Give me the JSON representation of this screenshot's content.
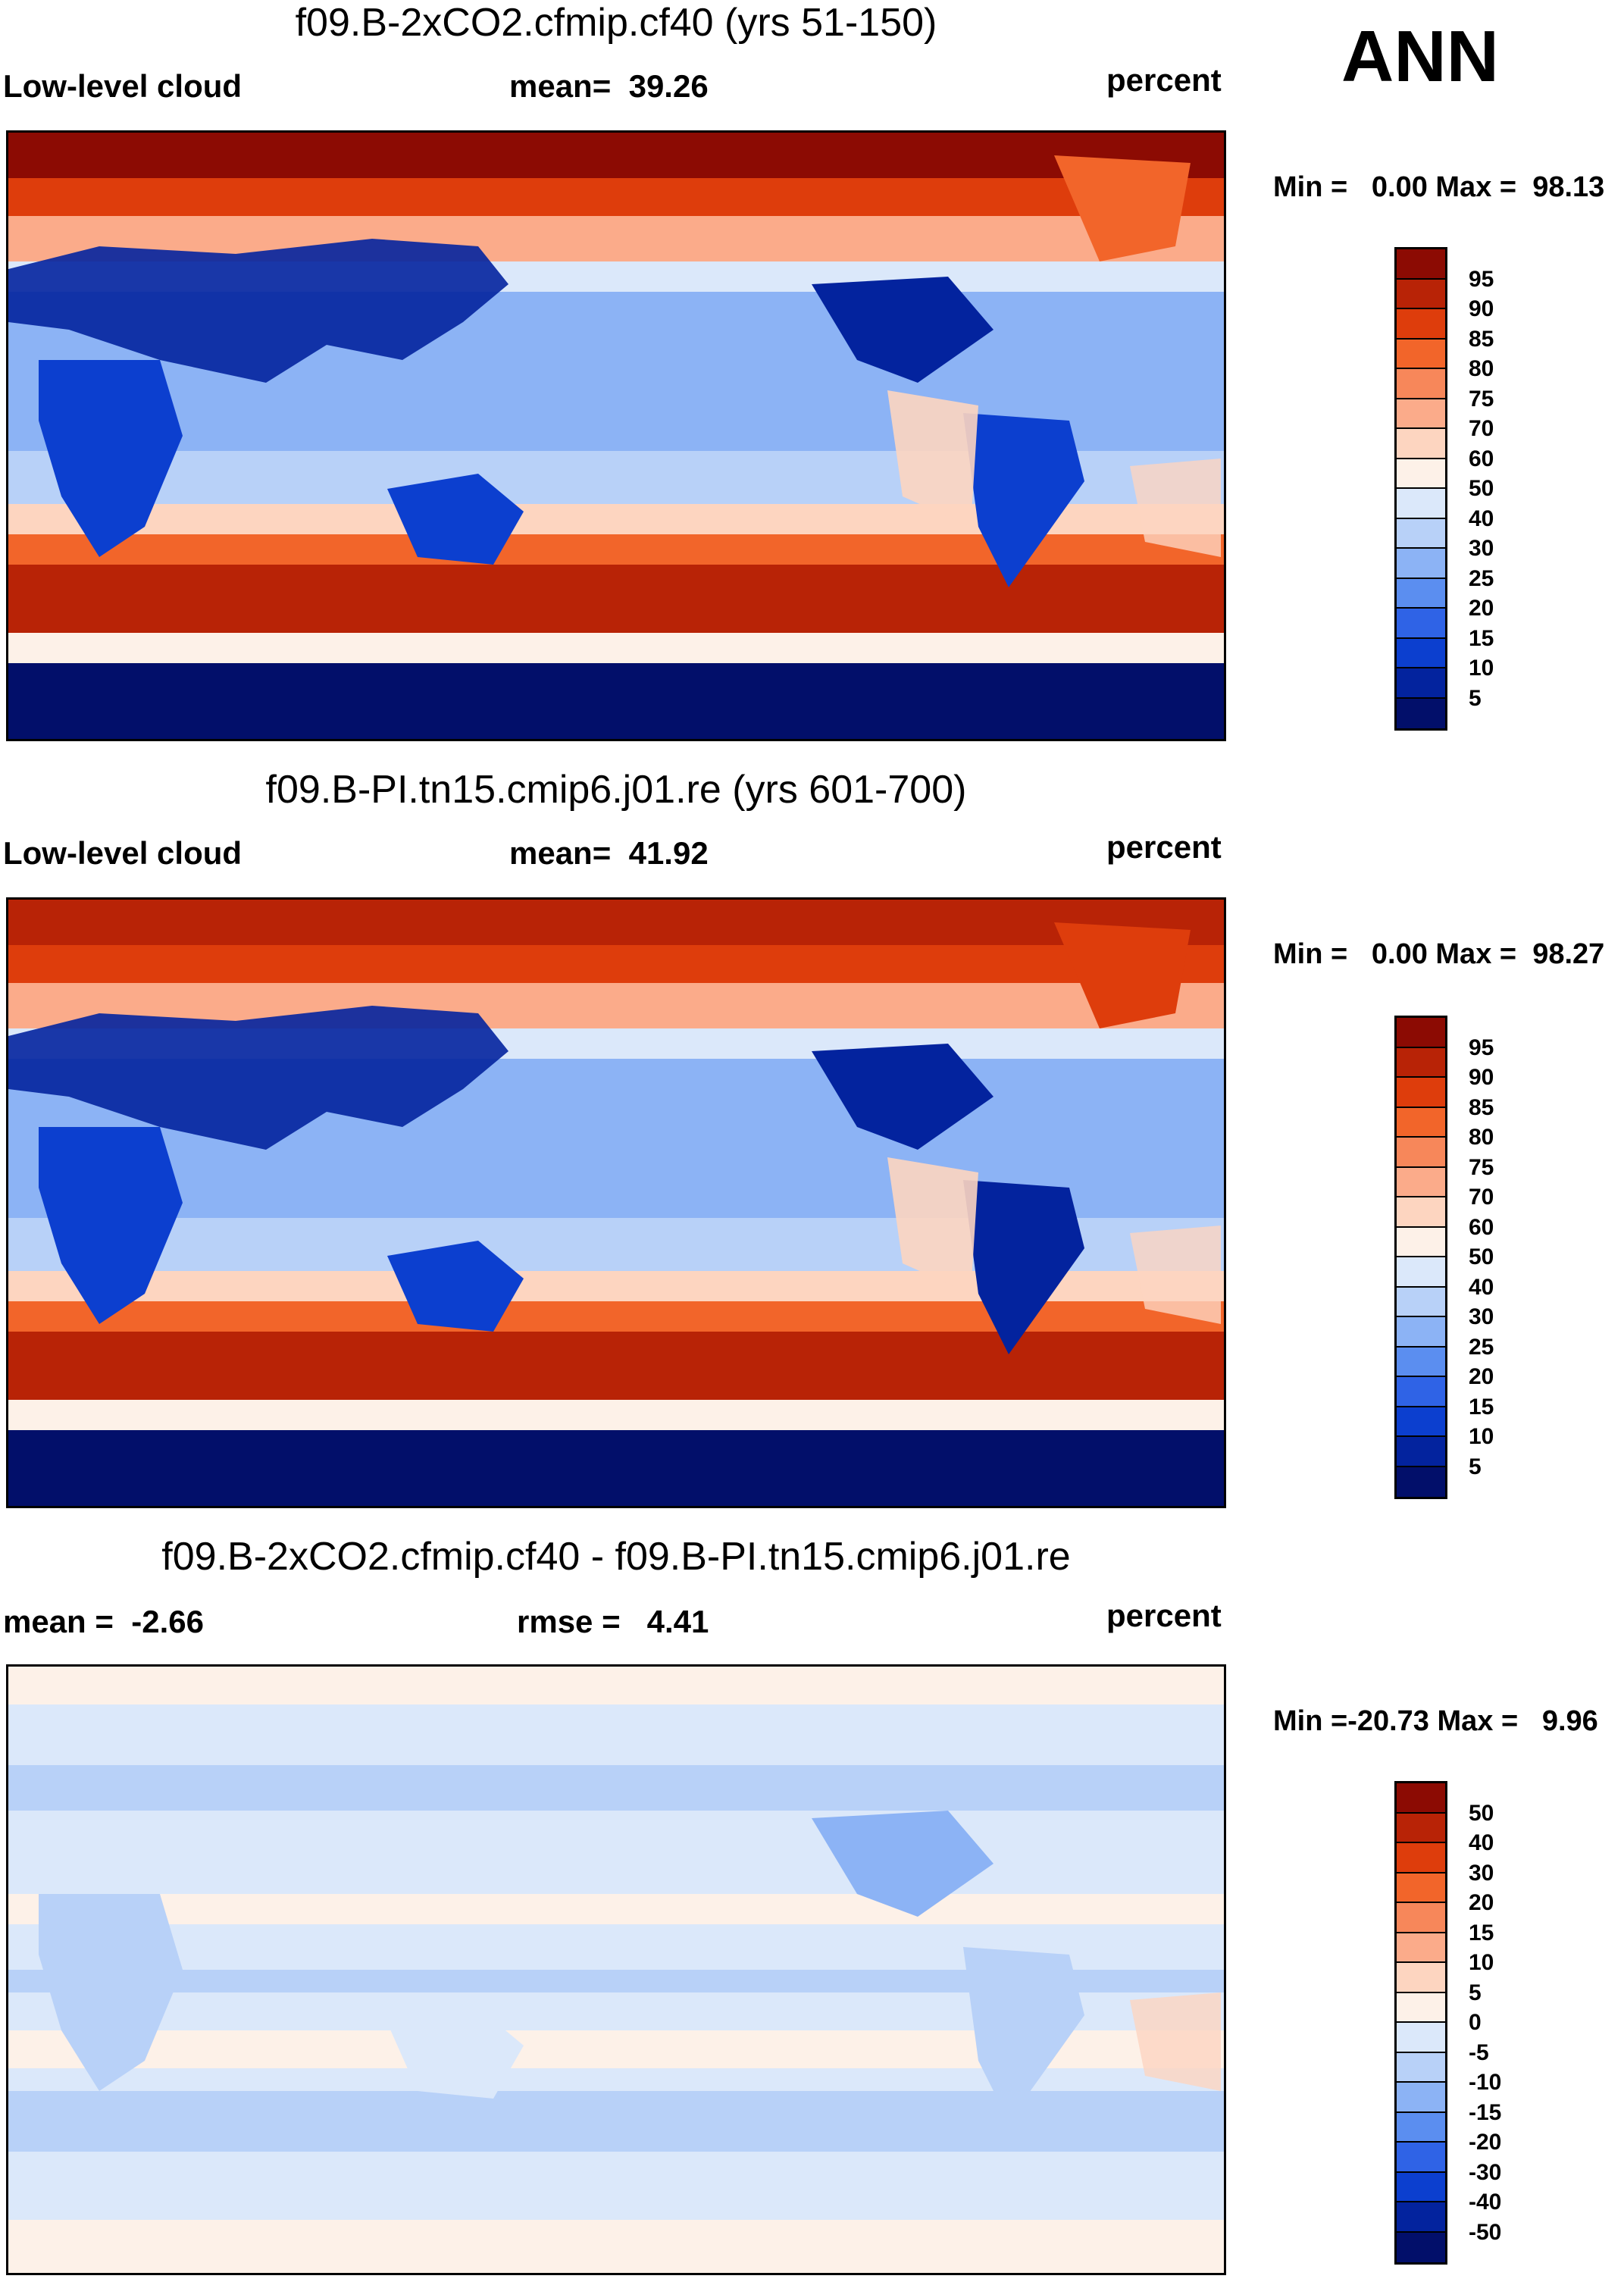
{
  "season": "ANN",
  "chart_data": [
    {
      "type": "heatmap",
      "title": "f09.B-2xCO2.cfmip.cf40 (yrs 51-150)",
      "variable": "Low-level cloud",
      "mean_label": "mean=",
      "mean_value": "39.26",
      "units": "percent",
      "min_label": "Min =",
      "min_value": "0.00",
      "max_label": "Max =",
      "max_value": "98.13",
      "colorbar": {
        "levels": [
          "95",
          "90",
          "85",
          "80",
          "75",
          "70",
          "60",
          "50",
          "40",
          "30",
          "25",
          "20",
          "15",
          "10",
          "5"
        ],
        "colors": [
          "#8c0b03",
          "#b82306",
          "#de3d0c",
          "#f2652a",
          "#f7875a",
          "#fbab8a",
          "#fdd5c0",
          "#fdf1e8",
          "#dbe8fa",
          "#b8d1f8",
          "#8cb3f5",
          "#5b8ef0",
          "#2f63e6",
          "#0c3fcf",
          "#03239e",
          "#020f6a"
        ]
      }
    },
    {
      "type": "heatmap",
      "title": "f09.B-PI.tn15.cmip6.j01.re (yrs 601-700)",
      "variable": "Low-level cloud",
      "mean_label": "mean=",
      "mean_value": "41.92",
      "units": "percent",
      "min_label": "Min =",
      "min_value": "0.00",
      "max_label": "Max =",
      "max_value": "98.27",
      "colorbar": {
        "levels": [
          "95",
          "90",
          "85",
          "80",
          "75",
          "70",
          "60",
          "50",
          "40",
          "30",
          "25",
          "20",
          "15",
          "10",
          "5"
        ],
        "colors": [
          "#8c0b03",
          "#b82306",
          "#de3d0c",
          "#f2652a",
          "#f7875a",
          "#fbab8a",
          "#fdd5c0",
          "#fdf1e8",
          "#dbe8fa",
          "#b8d1f8",
          "#8cb3f5",
          "#5b8ef0",
          "#2f63e6",
          "#0c3fcf",
          "#03239e",
          "#020f6a"
        ]
      }
    },
    {
      "type": "heatmap",
      "title": "f09.B-2xCO2.cfmip.cf40 - f09.B-PI.tn15.cmip6.j01.re",
      "variable": "mean =",
      "mean_label": "rmse =",
      "mean_value": "4.41",
      "diff_mean_value": "-2.66",
      "units": "percent",
      "min_label": "Min =",
      "min_value": "-20.73",
      "max_label": "Max =",
      "max_value": "9.96",
      "colorbar": {
        "levels": [
          "50",
          "40",
          "30",
          "20",
          "15",
          "10",
          "5",
          "0",
          "-5",
          "-10",
          "-15",
          "-20",
          "-30",
          "-40",
          "-50"
        ],
        "colors": [
          "#8c0b03",
          "#b82306",
          "#de3d0c",
          "#f2652a",
          "#f7875a",
          "#fbab8a",
          "#fdd5c0",
          "#fdf1e8",
          "#dbe8fa",
          "#b8d1f8",
          "#8cb3f5",
          "#5b8ef0",
          "#2f63e6",
          "#0c3fcf",
          "#03239e",
          "#020f6a"
        ]
      }
    }
  ]
}
